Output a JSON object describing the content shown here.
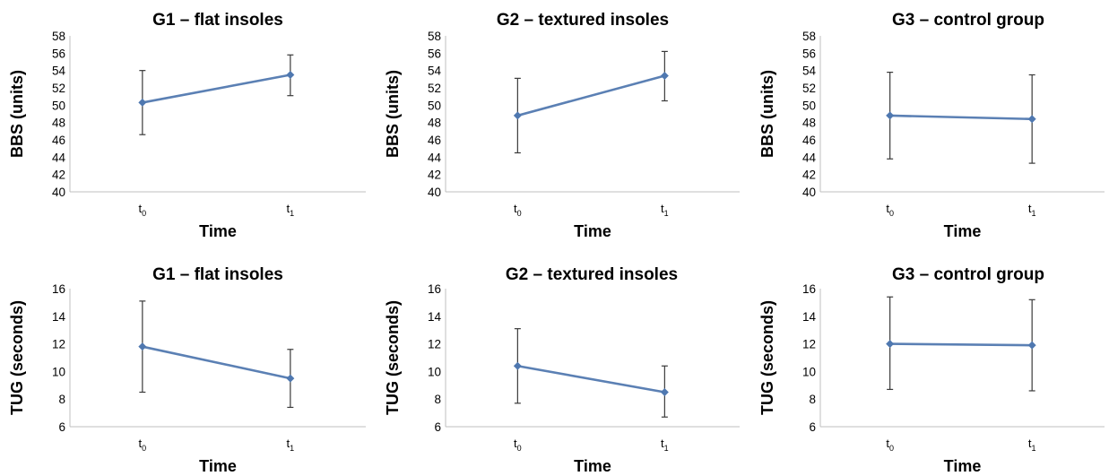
{
  "chart_data": [
    {
      "type": "line",
      "title": "G1 – flat insoles",
      "xlabel": "Time",
      "ylabel": "BBS (units)",
      "categories": [
        {
          "base": "t",
          "sub": "0"
        },
        {
          "base": "t",
          "sub": "1"
        }
      ],
      "yticks": [
        "40",
        "42",
        "44",
        "46",
        "48",
        "50",
        "52",
        "54",
        "56",
        "58"
      ],
      "ylim": [
        40,
        58
      ],
      "values": [
        50.3,
        53.5
      ],
      "error_low": [
        46.6,
        51.1
      ],
      "error_high": [
        54.0,
        55.8
      ],
      "color": "#5b80b4"
    },
    {
      "type": "line",
      "title": "G2 – textured insoles",
      "xlabel": "Time",
      "ylabel": "BBS (units)",
      "categories": [
        {
          "base": "t",
          "sub": "0"
        },
        {
          "base": "t",
          "sub": "1"
        }
      ],
      "yticks": [
        "40",
        "42",
        "44",
        "46",
        "48",
        "50",
        "52",
        "54",
        "56",
        "58"
      ],
      "ylim": [
        40,
        58
      ],
      "values": [
        48.8,
        53.4
      ],
      "error_low": [
        44.5,
        50.5
      ],
      "error_high": [
        53.1,
        56.2
      ],
      "color": "#5b80b4"
    },
    {
      "type": "line",
      "title": "G3 – control group",
      "xlabel": "Time",
      "ylabel": "BBS (units)",
      "categories": [
        {
          "base": "t",
          "sub": "0"
        },
        {
          "base": "t",
          "sub": "1"
        }
      ],
      "yticks": [
        "40",
        "42",
        "44",
        "46",
        "48",
        "50",
        "52",
        "54",
        "56",
        "58"
      ],
      "ylim": [
        40,
        58
      ],
      "values": [
        48.8,
        48.4
      ],
      "error_low": [
        43.8,
        43.3
      ],
      "error_high": [
        53.8,
        53.5
      ],
      "color": "#5b80b4"
    },
    {
      "type": "line",
      "title": "G1 – flat insoles",
      "xlabel": "Time",
      "ylabel": "TUG (seconds)",
      "categories": [
        {
          "base": "t",
          "sub": "0"
        },
        {
          "base": "t",
          "sub": "1"
        }
      ],
      "yticks": [
        "6",
        "8",
        "10",
        "12",
        "14",
        "16"
      ],
      "ylim": [
        6,
        16
      ],
      "values": [
        11.8,
        9.5
      ],
      "error_low": [
        8.5,
        7.4
      ],
      "error_high": [
        15.1,
        11.6
      ],
      "color": "#5b80b4"
    },
    {
      "type": "line",
      "title": "G2 – textured insoles",
      "xlabel": "Time",
      "ylabel": "TUG (seconds)",
      "categories": [
        {
          "base": "t",
          "sub": "0"
        },
        {
          "base": "t",
          "sub": "1"
        }
      ],
      "yticks": [
        "6",
        "8",
        "10",
        "12",
        "14",
        "16"
      ],
      "ylim": [
        6,
        16
      ],
      "values": [
        10.4,
        8.5
      ],
      "error_low": [
        7.7,
        6.7
      ],
      "error_high": [
        13.1,
        10.4
      ],
      "color": "#5b80b4"
    },
    {
      "type": "line",
      "title": "G3 – control group",
      "xlabel": "Time",
      "ylabel": "TUG (seconds)",
      "categories": [
        {
          "base": "t",
          "sub": "0"
        },
        {
          "base": "t",
          "sub": "1"
        }
      ],
      "yticks": [
        "6",
        "8",
        "10",
        "12",
        "14",
        "16"
      ],
      "ylim": [
        6,
        16
      ],
      "values": [
        12.0,
        11.9
      ],
      "error_low": [
        8.7,
        8.6
      ],
      "error_high": [
        15.4,
        15.2
      ],
      "color": "#5b80b4"
    }
  ]
}
